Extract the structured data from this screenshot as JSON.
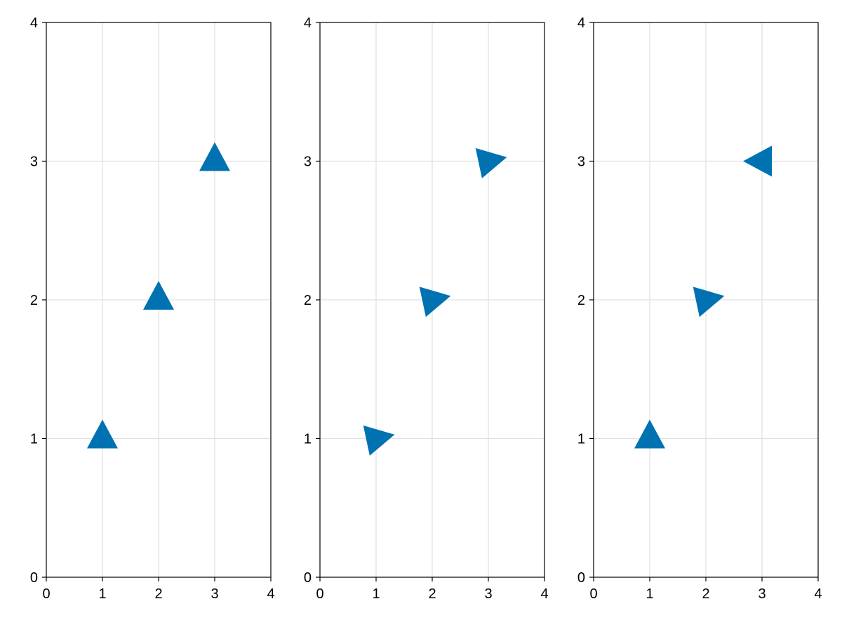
{
  "chart_data": [
    {
      "type": "scatter",
      "marker": "triangle",
      "x": [
        1,
        2,
        3
      ],
      "y": [
        1,
        2,
        3
      ],
      "rotation_deg_clockwise": [
        0,
        0,
        0
      ],
      "xlim": [
        0,
        4
      ],
      "ylim": [
        0,
        4
      ],
      "xticks": [
        "0",
        "1",
        "2",
        "3",
        "4"
      ],
      "yticks": [
        "0",
        "1",
        "2",
        "3",
        "4"
      ],
      "grid": true
    },
    {
      "type": "scatter",
      "marker": "triangle",
      "x": [
        1,
        2,
        3
      ],
      "y": [
        1,
        2,
        3
      ],
      "rotation_deg_clockwise": [
        78,
        78,
        78
      ],
      "xlim": [
        0,
        4
      ],
      "ylim": [
        0,
        4
      ],
      "xticks": [
        "0",
        "1",
        "2",
        "3",
        "4"
      ],
      "yticks": [
        "0",
        "1",
        "2",
        "3",
        "4"
      ],
      "grid": true
    },
    {
      "type": "scatter",
      "marker": "triangle",
      "x": [
        1,
        2,
        3
      ],
      "y": [
        1,
        2,
        3
      ],
      "rotation_deg_clockwise": [
        0,
        78,
        -90
      ],
      "xlim": [
        0,
        4
      ],
      "ylim": [
        0,
        4
      ],
      "xticks": [
        "0",
        "1",
        "2",
        "3",
        "4"
      ],
      "yticks": [
        "0",
        "1",
        "2",
        "3",
        "4"
      ],
      "grid": true
    }
  ],
  "colors": {
    "marker": "#0072b2",
    "grid": "#e0e0e0",
    "axis": "#000000"
  }
}
